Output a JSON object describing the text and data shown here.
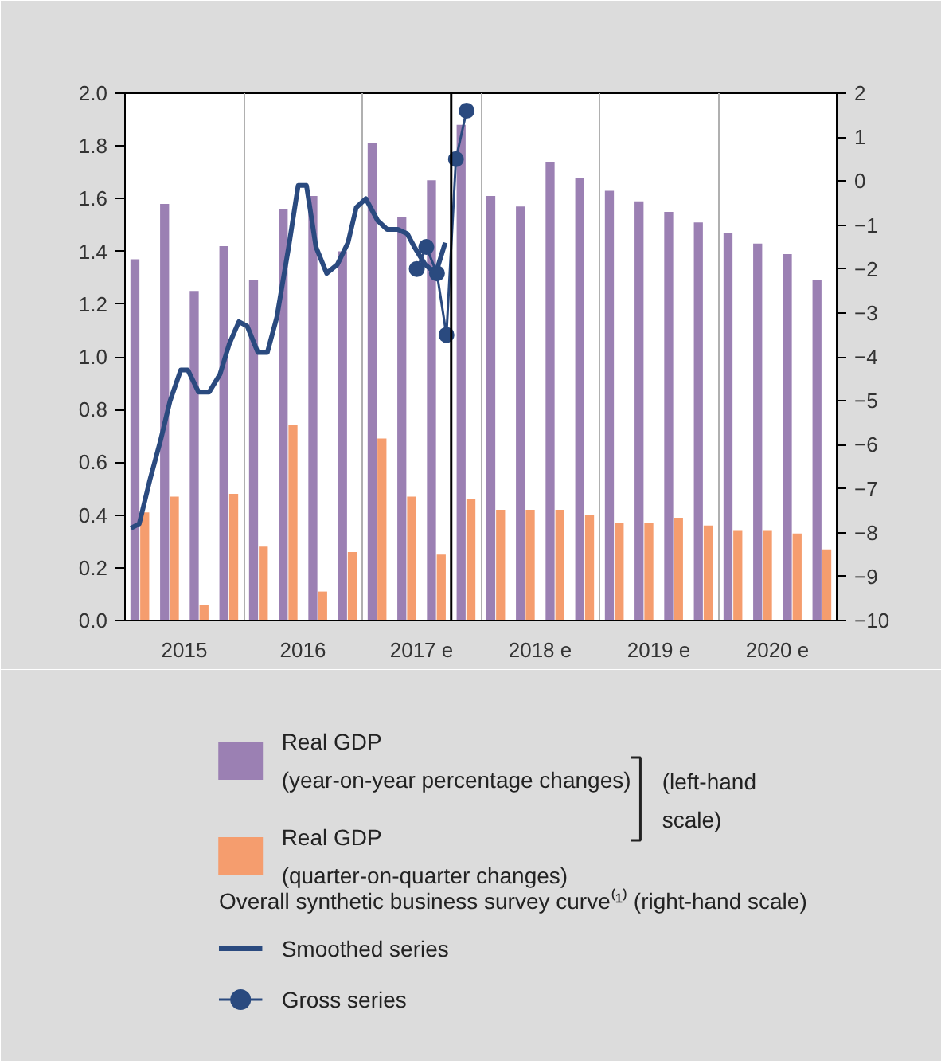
{
  "chart_data": {
    "type": "bar",
    "x": [
      2015.125,
      2015.375,
      2015.625,
      2015.875,
      2016.125,
      2016.375,
      2016.625,
      2016.875,
      2017.125,
      2017.375,
      2017.625,
      2017.875,
      2018.125,
      2018.375,
      2018.625,
      2018.875,
      2019.125,
      2019.375,
      2019.625,
      2019.875,
      2020.125,
      2020.375,
      2020.625,
      2020.875
    ],
    "series": [
      {
        "name": "Real GDP\n(year-on-year percentage changes)",
        "color": "#9b80b3",
        "values": [
          1.37,
          1.58,
          1.25,
          1.42,
          1.29,
          1.56,
          1.61,
          1.4,
          1.81,
          1.53,
          1.67,
          1.88,
          1.61,
          1.57,
          1.74,
          1.68,
          1.63,
          1.59,
          1.55,
          1.51,
          1.47,
          1.43,
          1.39,
          1.29
        ]
      },
      {
        "name": "Real GDP\n(quarter-on-quarter changes)",
        "color": "#f59d6e",
        "values": [
          0.41,
          0.47,
          0.06,
          0.48,
          0.28,
          0.74,
          0.11,
          0.26,
          0.69,
          0.47,
          0.25,
          0.46,
          0.42,
          0.42,
          0.42,
          0.4,
          0.37,
          0.37,
          0.39,
          0.36,
          0.34,
          0.34,
          0.33,
          0.27
        ]
      },
      {
        "name": "Smoothed series",
        "type": "line",
        "axis": "y2",
        "color": "#2a4a7f",
        "marker": "none",
        "x": [
          2015.05,
          2015.12,
          2015.21,
          2015.3,
          2015.38,
          2015.47,
          2015.53,
          2015.62,
          2015.71,
          2015.8,
          2015.88,
          2015.96,
          2016.03,
          2016.12,
          2016.2,
          2016.28,
          2016.38,
          2016.46,
          2016.53,
          2016.61,
          2016.7,
          2016.79,
          2016.88,
          2016.95,
          2017.03,
          2017.13,
          2017.21,
          2017.3,
          2017.38,
          2017.44,
          2017.53,
          2017.62,
          2017.7
        ],
        "values": [
          -7.9,
          -7.8,
          -6.8,
          -5.9,
          -5.0,
          -4.3,
          -4.3,
          -4.8,
          -4.8,
          -4.4,
          -3.7,
          -3.2,
          -3.3,
          -3.9,
          -3.9,
          -3.1,
          -1.5,
          -0.1,
          -0.1,
          -1.5,
          -2.1,
          -1.9,
          -1.4,
          -0.6,
          -0.4,
          -0.9,
          -1.1,
          -1.1,
          -1.2,
          -1.5,
          -1.9,
          -2.1,
          -1.4
        ]
      },
      {
        "name": "Gross series",
        "type": "line",
        "axis": "y2",
        "color": "#2a4a7f",
        "marker": "circle",
        "x": [
          2017.46,
          2017.54,
          2017.63,
          2017.71,
          2017.79,
          2017.88
        ],
        "values": [
          -2.0,
          -1.5,
          -2.1,
          -3.5,
          0.5,
          1.6
        ]
      }
    ],
    "xlim": [
      2015,
      2021
    ],
    "xticks": [
      {
        "value": 2015.5,
        "label": "2015"
      },
      {
        "value": 2016,
        "label": null
      },
      {
        "value": 2016.5,
        "label": "2016"
      },
      {
        "value": 2017,
        "label": null
      },
      {
        "value": 2017.5,
        "label": "2017 e"
      },
      {
        "value": 2018,
        "label": null
      },
      {
        "value": 2018.5,
        "label": "2018 e"
      },
      {
        "value": 2019,
        "label": null
      },
      {
        "value": 2019.5,
        "label": "2019 e"
      },
      {
        "value": 2020,
        "label": null
      },
      {
        "value": 2020.5,
        "label": "2020 e"
      }
    ],
    "ylim": [
      0,
      2
    ],
    "yticks": [
      {
        "value": 0,
        "label": "0.0"
      },
      {
        "value": 0.2,
        "label": "0.2"
      },
      {
        "value": 0.4,
        "label": "0.4"
      },
      {
        "value": 0.6,
        "label": "0.6"
      },
      {
        "value": 0.8,
        "label": "0.8"
      },
      {
        "value": 1,
        "label": "1.0"
      },
      {
        "value": 1.2,
        "label": "1.2"
      },
      {
        "value": 1.4,
        "label": "1.4"
      },
      {
        "value": 1.6,
        "label": "1.6"
      },
      {
        "value": 1.8,
        "label": "1.8"
      },
      {
        "value": 2,
        "label": "2.0"
      }
    ],
    "y2lim": [
      -10,
      2
    ],
    "y2ticks": [
      {
        "value": -10,
        "label": "−10"
      },
      {
        "value": -9,
        "label": "−9"
      },
      {
        "value": -8,
        "label": "−8"
      },
      {
        "value": -7,
        "label": "−7"
      },
      {
        "value": -6,
        "label": "−6"
      },
      {
        "value": -5,
        "label": "−5"
      },
      {
        "value": -4,
        "label": "−4"
      },
      {
        "value": -3,
        "label": "−3"
      },
      {
        "value": -2,
        "label": "−2"
      },
      {
        "value": -1,
        "label": "−1"
      },
      0,
      1,
      2
    ],
    "ref_lines": [
      {
        "axis": "x",
        "value": 2017.75,
        "color": "#000000"
      }
    ],
    "grid": "x",
    "legend": "bottom",
    "annotations": [
      "(left-hand\nscale)",
      "Overall synthetic business survey curve⁽¹⁾ (right-hand scale)"
    ]
  }
}
